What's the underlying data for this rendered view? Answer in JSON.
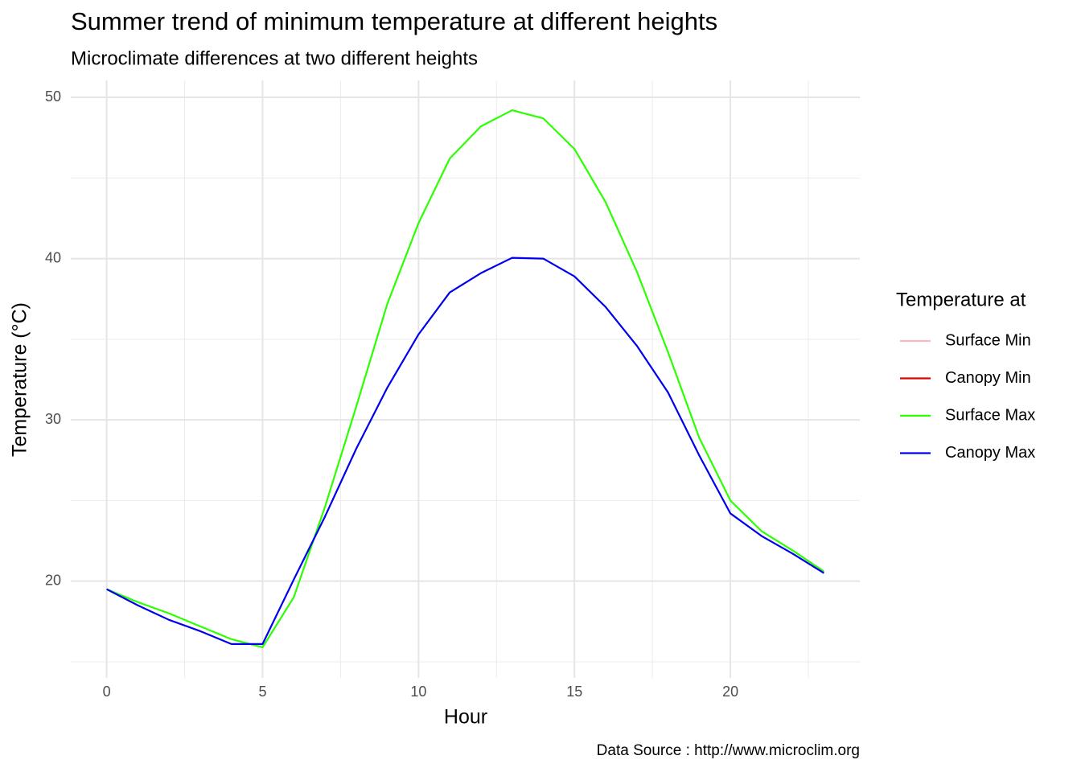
{
  "chart_data": {
    "type": "line",
    "title": "Summer trend of minimum temperature at different heights",
    "subtitle": "Microclimate differences at two different heights",
    "x_label": "Hour",
    "y_label": "Temperature (°C)",
    "caption": "Data Source : http://www.microclim.org",
    "legend_title": "Temperature at",
    "legend_position": "right",
    "grid": true,
    "x": [
      0,
      1,
      2,
      3,
      4,
      5,
      6,
      7,
      8,
      9,
      10,
      11,
      12,
      13,
      14,
      15,
      16,
      17,
      18,
      19,
      20,
      21,
      22,
      23
    ],
    "xlim": [
      -1.15,
      24.15
    ],
    "xticks": [
      0,
      5,
      10,
      15,
      20
    ],
    "xminor": [
      2.5,
      7.5,
      12.5,
      17.5,
      22.5
    ],
    "ylim": [
      14,
      51.05
    ],
    "yticks": [
      20,
      30,
      40,
      50
    ],
    "yminor": [
      15,
      25,
      35,
      45
    ],
    "series": [
      {
        "name": "Surface Min",
        "color": "#ffb6c1",
        "values": [
          null,
          null,
          null,
          null,
          null,
          null,
          null,
          null,
          null,
          null,
          null,
          null,
          null,
          null,
          null,
          null,
          null,
          null,
          null,
          null,
          null,
          null,
          null,
          null
        ]
      },
      {
        "name": "Canopy Min",
        "color": "#e00000",
        "values": [
          null,
          null,
          null,
          null,
          null,
          null,
          null,
          null,
          null,
          null,
          null,
          null,
          null,
          null,
          null,
          null,
          null,
          null,
          null,
          null,
          null,
          null,
          null,
          null
        ]
      },
      {
        "name": "Surface Max",
        "color": "#2bff00",
        "values": [
          19.5,
          18.7,
          18.0,
          17.2,
          16.4,
          15.9,
          19.0,
          24.6,
          30.8,
          37.2,
          42.2,
          46.2,
          48.2,
          49.2,
          48.7,
          46.8,
          43.5,
          39.2,
          34.2,
          28.9,
          25.0,
          23.1,
          21.9,
          20.6
        ]
      },
      {
        "name": "Canopy Max",
        "color": "#0000ee",
        "values": [
          19.5,
          18.5,
          17.6,
          16.9,
          16.1,
          16.1,
          20.1,
          24.0,
          28.2,
          32.0,
          35.3,
          37.9,
          39.1,
          40.05,
          40.0,
          38.9,
          37.0,
          34.6,
          31.7,
          27.8,
          24.2,
          22.8,
          21.7,
          20.5
        ]
      }
    ]
  }
}
